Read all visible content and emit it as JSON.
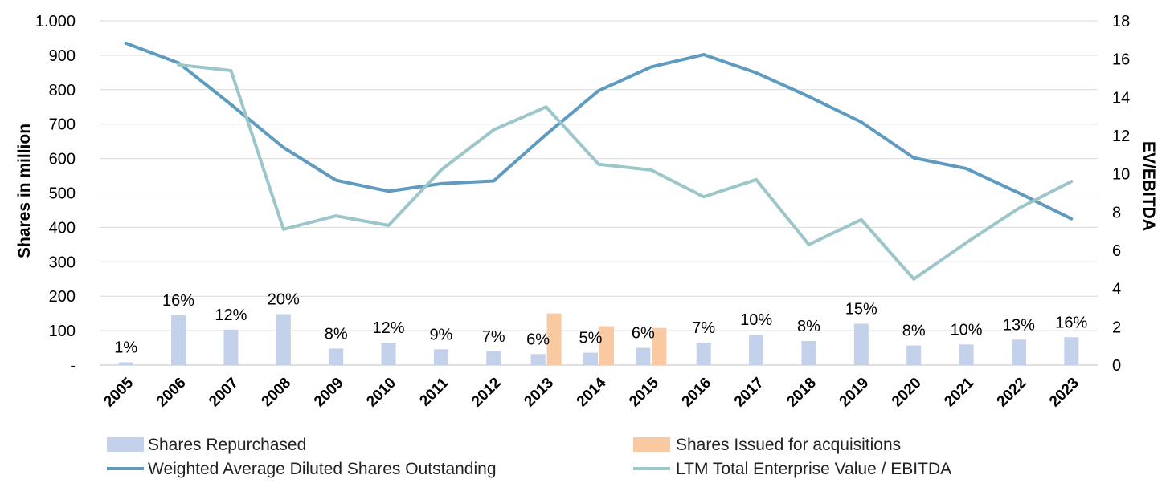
{
  "chart_data": {
    "type": "bar+line",
    "categories": [
      "2005",
      "2006",
      "2007",
      "2008",
      "2009",
      "2010",
      "2011",
      "2012",
      "2013",
      "2014",
      "2015",
      "2016",
      "2017",
      "2018",
      "2019",
      "2020",
      "2021",
      "2022",
      "2023"
    ],
    "bar_series": [
      {
        "name": "Shares Repurchased",
        "color": "#c3d1ea",
        "axis": "left",
        "values": [
          8,
          145,
          103,
          148,
          48,
          65,
          46,
          40,
          32,
          36,
          50,
          65,
          88,
          70,
          120,
          57,
          60,
          74,
          81
        ],
        "labels": [
          "1%",
          "16%",
          "12%",
          "20%",
          "8%",
          "12%",
          "9%",
          "7%",
          "6%",
          "5%",
          "6%",
          "7%",
          "10%",
          "8%",
          "15%",
          "8%",
          "10%",
          "13%",
          "16%"
        ]
      },
      {
        "name": "Shares Issued for acquisitions",
        "color": "#f9c9a2",
        "axis": "left",
        "values": [
          0,
          0,
          0,
          0,
          0,
          0,
          0,
          0,
          150,
          113,
          108,
          0,
          0,
          0,
          0,
          0,
          0,
          0,
          0
        ]
      }
    ],
    "line_series": [
      {
        "name": "Weighted Average Diluted Shares Outstanding",
        "color": "#5f9ac0",
        "axis": "left",
        "values": [
          935,
          878,
          757,
          632,
          537,
          505,
          527,
          535,
          670,
          797,
          866,
          902,
          849,
          780,
          706,
          602,
          571,
          500,
          425
        ]
      },
      {
        "name": "LTM Total Enterprise Value / EBITDA",
        "color": "#9cc6c9",
        "axis": "right",
        "values": [
          null,
          15.7,
          15.4,
          7.1,
          7.8,
          7.3,
          10.2,
          12.3,
          13.5,
          10.5,
          10.2,
          8.8,
          9.7,
          6.3,
          7.6,
          4.5,
          6.4,
          8.2,
          9.6
        ]
      }
    ],
    "y_left": {
      "label": "Shares in million",
      "range": [
        0,
        1000
      ],
      "ticks": [
        0,
        100,
        200,
        300,
        400,
        500,
        600,
        700,
        800,
        900,
        1000
      ],
      "tick_labels": [
        "-",
        "100",
        "200",
        "300",
        "400",
        "500",
        "600",
        "700",
        "800",
        "900",
        "1.000"
      ]
    },
    "y_right": {
      "label": "EV/EBITDA",
      "range": [
        0,
        18
      ],
      "ticks": [
        0,
        2,
        4,
        6,
        8,
        10,
        12,
        14,
        16,
        18
      ],
      "tick_labels": [
        "0",
        "2",
        "4",
        "6",
        "8",
        "10",
        "12",
        "14",
        "16",
        "18"
      ]
    },
    "grid": "horizontal",
    "legend_position": "bottom"
  }
}
